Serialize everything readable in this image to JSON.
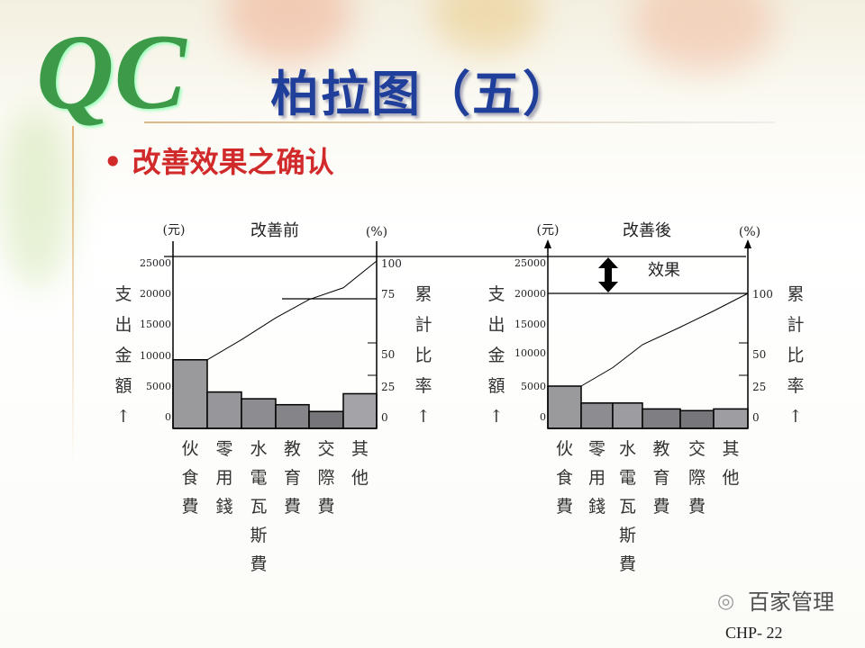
{
  "slide": {
    "logo": "QC",
    "title": "柏拉图（五）",
    "bullet_mark": "•",
    "bullet": "改善效果之确认",
    "footer": "CHP- 22",
    "watermark": "百家管理"
  },
  "chart_data": [
    {
      "type": "bar",
      "title": "改善前",
      "y_unit": "(元)",
      "y2_unit": "(%)",
      "ylabel": [
        "支",
        "出",
        "金",
        "額",
        "↑"
      ],
      "y2label": [
        "累",
        "計",
        "比",
        "率",
        "↑"
      ],
      "yticks": [
        "25000",
        "20000",
        "15000",
        "10000",
        "5000",
        "0"
      ],
      "y2ticks": [
        "100",
        "75",
        "50",
        "25",
        "0"
      ],
      "categories": [
        [
          "伙",
          "食",
          "費"
        ],
        [
          "零",
          "用",
          "錢"
        ],
        [
          "水",
          "電",
          "瓦",
          "斯",
          "費"
        ],
        [
          "教",
          "育",
          "費"
        ],
        [
          "交",
          "際",
          "費"
        ],
        [
          "其",
          "他"
        ]
      ],
      "values": [
        9300,
        4300,
        3500,
        2800,
        2000,
        4100
      ],
      "cumulative_percent": [
        36,
        53,
        66,
        77,
        84,
        100
      ],
      "bar_colors": [
        "#9a999c",
        "#97969a",
        "#8d8c90",
        "#858488",
        "#76757a",
        "#a4a3a7"
      ]
    },
    {
      "type": "bar",
      "title": "改善後",
      "y_unit": "(元)",
      "y2_unit": "(%)",
      "annotation": "效果",
      "ylabel": [
        "支",
        "出",
        "金",
        "額",
        "↑"
      ],
      "y2label": [
        "累",
        "計",
        "比",
        "率",
        "↑"
      ],
      "yticks": [
        "25000",
        "20000",
        "15000",
        "10000",
        "5000",
        "0"
      ],
      "y2ticks": [
        "100",
        "50",
        "25",
        "0"
      ],
      "categories": [
        [
          "伙",
          "食",
          "費"
        ],
        [
          "零",
          "用",
          "錢"
        ],
        [
          "水",
          "電",
          "瓦",
          "斯",
          "費"
        ],
        [
          "教",
          "育",
          "費"
        ],
        [
          "交",
          "際",
          "費"
        ],
        [
          "其",
          "他"
        ]
      ],
      "values": [
        5000,
        3000,
        3000,
        2300,
        2100,
        2300
      ],
      "cumulative_percent": [
        28,
        45,
        62,
        75,
        87,
        100
      ],
      "bar_colors": [
        "#9a999c",
        "#8d8c90",
        "#9d9ca0",
        "#7f7e83",
        "#77767b",
        "#9e9da1"
      ]
    }
  ]
}
